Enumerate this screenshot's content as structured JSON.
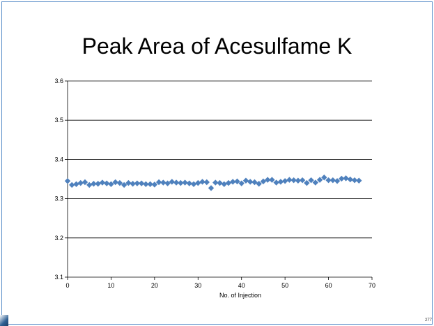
{
  "slide": {
    "page_number": "277"
  },
  "chart_data": {
    "type": "scatter",
    "title": "Peak Area of Acesulfame K",
    "xlabel": "No. of Injection",
    "ylabel": "",
    "xlim": [
      0,
      70
    ],
    "ylim": [
      3.1,
      3.6
    ],
    "x_ticks": [
      "0",
      "10",
      "20",
      "30",
      "40",
      "50",
      "60",
      "70"
    ],
    "y_ticks": [
      "3.1",
      "3.2",
      "3.3",
      "3.4",
      "3.5",
      "3.6"
    ],
    "grid": "horizontal",
    "legend": "none",
    "marker": "diamond",
    "marker_color": "#4f81bd",
    "x": [
      0,
      1,
      2,
      3,
      4,
      5,
      6,
      7,
      8,
      9,
      10,
      11,
      12,
      13,
      14,
      15,
      16,
      17,
      18,
      19,
      20,
      21,
      22,
      23,
      24,
      25,
      26,
      27,
      28,
      29,
      30,
      31,
      32,
      33,
      34,
      35,
      36,
      37,
      38,
      39,
      40,
      41,
      42,
      43,
      44,
      45,
      46,
      47,
      48,
      49,
      50,
      51,
      52,
      53,
      54,
      55,
      56,
      57,
      58,
      59,
      60,
      61,
      62,
      63,
      64,
      65,
      66,
      67
    ],
    "y": [
      3.345,
      3.335,
      3.337,
      3.34,
      3.342,
      3.335,
      3.338,
      3.338,
      3.341,
      3.339,
      3.337,
      3.342,
      3.34,
      3.335,
      3.34,
      3.338,
      3.339,
      3.339,
      3.337,
      3.337,
      3.336,
      3.342,
      3.341,
      3.339,
      3.343,
      3.341,
      3.34,
      3.341,
      3.339,
      3.337,
      3.34,
      3.343,
      3.342,
      3.327,
      3.341,
      3.34,
      3.337,
      3.34,
      3.343,
      3.344,
      3.339,
      3.346,
      3.343,
      3.342,
      3.338,
      3.344,
      3.348,
      3.348,
      3.341,
      3.343,
      3.345,
      3.348,
      3.347,
      3.346,
      3.347,
      3.34,
      3.347,
      3.341,
      3.348,
      3.354,
      3.347,
      3.347,
      3.345,
      3.351,
      3.352,
      3.349,
      3.347,
      3.346
    ]
  }
}
